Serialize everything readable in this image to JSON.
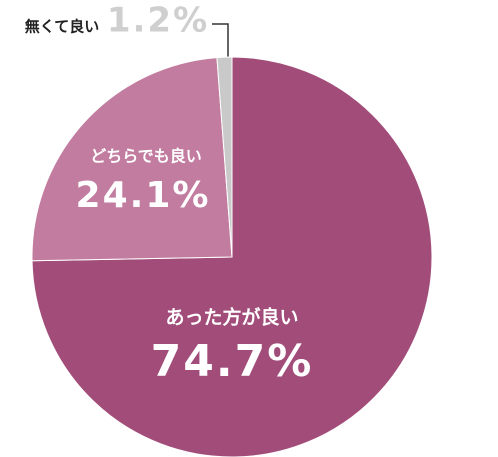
{
  "chart_data": {
    "type": "pie",
    "categories": [
      "あった方が良い",
      "どちらでも良い",
      "無くて良い"
    ],
    "values": [
      74.7,
      24.1,
      1.2
    ],
    "value_labels": [
      "74.7%",
      "24.1%",
      "1.2%"
    ],
    "colors": [
      "#a24c7a",
      "#c27c9f",
      "#c9c9c9"
    ]
  }
}
